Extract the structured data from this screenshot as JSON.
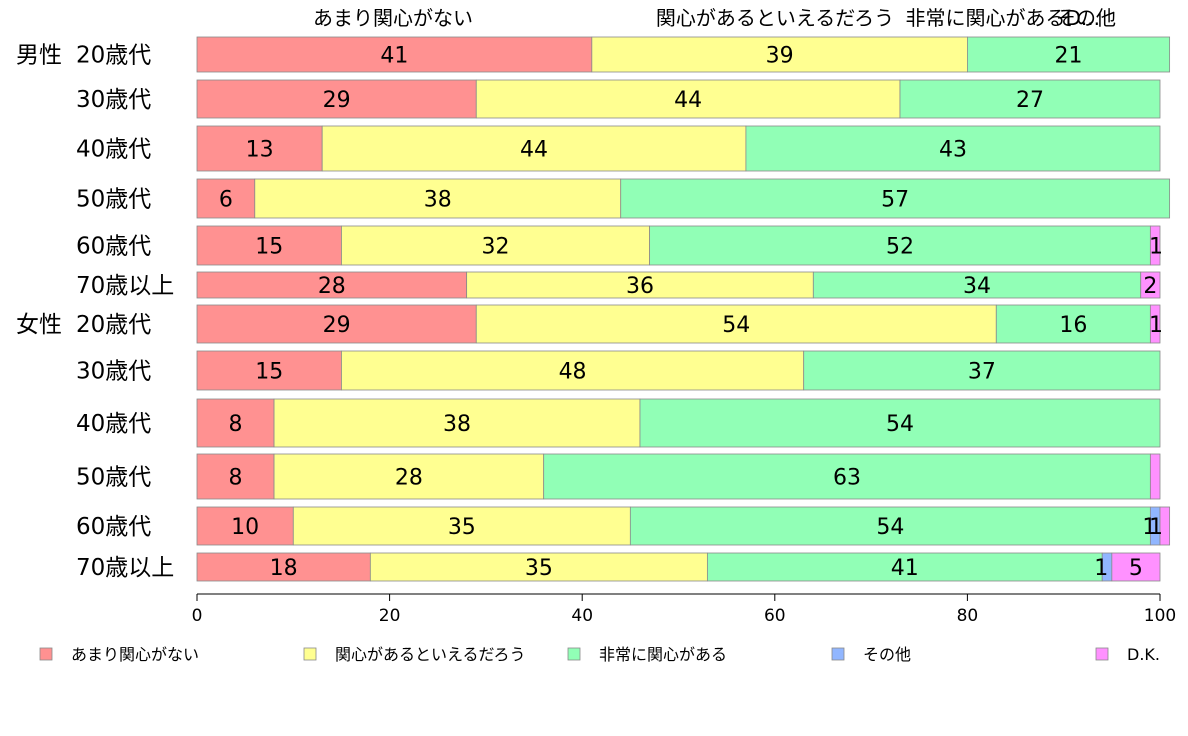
{
  "chart_data": {
    "type": "bar",
    "orientation": "horizontal",
    "stacked": true,
    "title": "",
    "xlabel": "",
    "ylabel": "",
    "xlim": [
      0,
      100
    ],
    "x_ticks": [
      "0",
      "20",
      "40",
      "60",
      "80",
      "100"
    ],
    "grid": false,
    "legend_position": "bottom",
    "groups": [
      {
        "label": "男性",
        "row_start": 0
      },
      {
        "label": "女性",
        "row_start": 6
      }
    ],
    "categories": [
      "20歳代",
      "30歳代",
      "40歳代",
      "50歳代",
      "60歳代",
      "70歳以上",
      "20歳代",
      "30歳代",
      "40歳代",
      "50歳代",
      "60歳代",
      "70歳以上"
    ],
    "top_labels": [
      "あまり関心がない",
      "関心があるといえるだろう",
      "非常に関心があるD...",
      "その他"
    ],
    "series": [
      {
        "name": "あまり関心がない",
        "color": "#ff9191",
        "values": [
          41,
          29,
          13,
          6,
          15,
          28,
          29,
          15,
          8,
          8,
          10,
          18
        ]
      },
      {
        "name": "関心があるといえるだろう",
        "color": "#ffff91",
        "values": [
          39,
          44,
          44,
          38,
          32,
          36,
          54,
          48,
          38,
          28,
          35,
          35
        ]
      },
      {
        "name": "非常に関心がある",
        "color": "#91ffb6",
        "values": [
          21,
          27,
          43,
          57,
          52,
          34,
          16,
          37,
          54,
          63,
          54,
          41
        ]
      },
      {
        "name": "その他",
        "color": "#91b6ff",
        "values": [
          0,
          0,
          0,
          0,
          0,
          0,
          0,
          0,
          0,
          0,
          1,
          1
        ]
      },
      {
        "name": "D.K.",
        "color": "#ff91ff",
        "values": [
          0,
          0,
          0,
          0,
          1,
          2,
          1,
          0,
          0,
          1,
          1,
          5
        ]
      }
    ],
    "value_labels": [
      [
        "41",
        "39",
        "21",
        "",
        ""
      ],
      [
        "29",
        "44",
        "27",
        "",
        ""
      ],
      [
        "13",
        "44",
        "43",
        "",
        ""
      ],
      [
        "6",
        "38",
        "57",
        "",
        ""
      ],
      [
        "15",
        "32",
        "52",
        "",
        "1"
      ],
      [
        "28",
        "36",
        "34",
        "",
        "2"
      ],
      [
        "29",
        "54",
        "16",
        "",
        "1"
      ],
      [
        "15",
        "48",
        "37",
        "",
        ""
      ],
      [
        "8",
        "38",
        "54",
        "",
        ""
      ],
      [
        "8",
        "28",
        "63",
        "",
        ""
      ],
      [
        "10",
        "35",
        "54",
        "1",
        "1"
      ],
      [
        "18",
        "35",
        "41",
        "1",
        "5"
      ]
    ]
  }
}
